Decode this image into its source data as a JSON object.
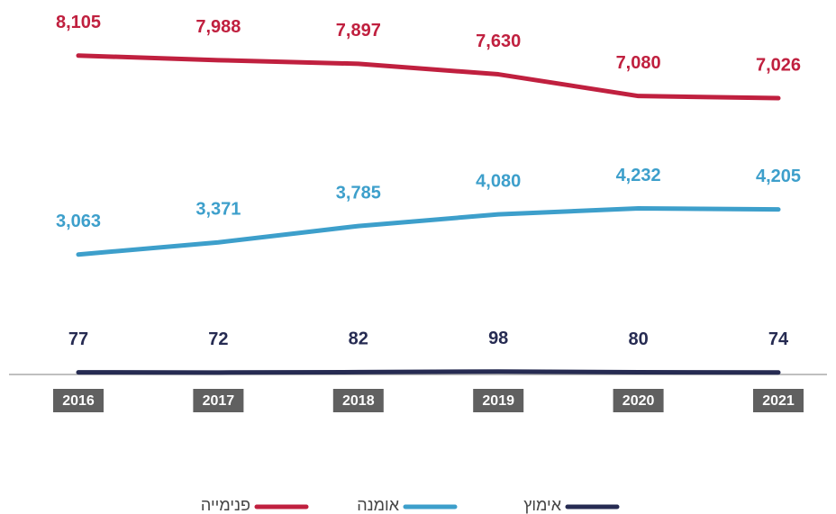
{
  "chart_data": {
    "type": "line",
    "categories": [
      "2016",
      "2017",
      "2018",
      "2019",
      "2020",
      "2021"
    ],
    "series": [
      {
        "name": "פנימייה",
        "color": "#c0203f",
        "values": [
          8105,
          7988,
          7897,
          7630,
          7080,
          7026
        ],
        "value_labels": [
          "8,105",
          "7,988",
          "7,897",
          "7,630",
          "7,080",
          "7,026"
        ]
      },
      {
        "name": "אומנה",
        "color": "#3d9fcb",
        "values": [
          3063,
          3371,
          3785,
          4080,
          4232,
          4205
        ],
        "value_labels": [
          "3,063",
          "3,371",
          "3,785",
          "4,080",
          "4,232",
          "4,205"
        ]
      },
      {
        "name": "אימוץ",
        "color": "#262b52",
        "values": [
          77,
          72,
          82,
          98,
          80,
          74
        ]
      }
    ],
    "ylim": [
      0,
      9000
    ]
  }
}
